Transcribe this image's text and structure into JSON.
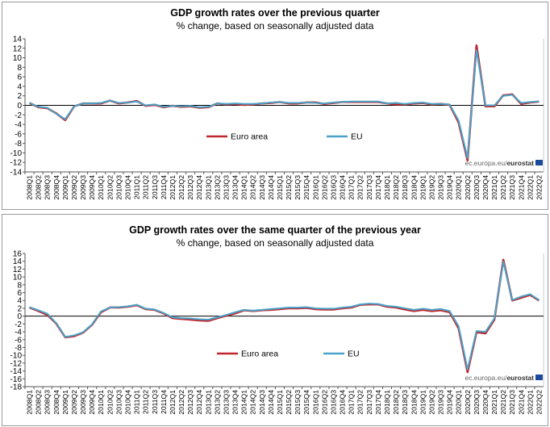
{
  "colors": {
    "euro_area": "#c0262d",
    "eu": "#4aa3c8",
    "zero_line": "#000000",
    "axis": "#555555",
    "eurostat_badge": "#1b4a9c"
  },
  "legend": {
    "euro_area": "Euro area",
    "eu": "EU"
  },
  "source": {
    "prefix": "ec.europa.eu/",
    "brand": "eurostat"
  },
  "chart_data": [
    {
      "type": "line",
      "title": "GDP growth rates over the previous quarter",
      "subtitle": "% change, based on seasonally adjusted data",
      "xlabel": "",
      "ylabel": "",
      "ylim": [
        -14,
        14
      ],
      "yticks": [
        14,
        12,
        10,
        8,
        6,
        4,
        2,
        0,
        -2,
        -4,
        -6,
        -8,
        -10,
        -12,
        -14
      ],
      "categories": [
        "2008Q1",
        "2008Q2",
        "2008Q3",
        "2008Q4",
        "2009Q1",
        "2009Q2",
        "2009Q3",
        "2009Q4",
        "2010Q1",
        "2010Q2",
        "2010Q3",
        "2010Q4",
        "2011Q1",
        "2011Q2",
        "2011Q3",
        "2011Q4",
        "2012Q1",
        "2012Q2",
        "2012Q3",
        "2012Q4",
        "2013Q1",
        "2013Q2",
        "2013Q3",
        "2013Q4",
        "2014Q1",
        "2014Q2",
        "2014Q3",
        "2014Q4",
        "2015Q1",
        "2015Q2",
        "2015Q3",
        "2015Q4",
        "2016Q1",
        "2016Q2",
        "2016Q3",
        "2016Q4",
        "2017Q1",
        "2017Q2",
        "2017Q3",
        "2017Q4",
        "2018Q1",
        "2018Q2",
        "2018Q3",
        "2018Q4",
        "2019Q1",
        "2019Q2",
        "2019Q3",
        "2019Q4",
        "2020Q1",
        "2020Q2",
        "2020Q3",
        "2020Q4",
        "2021Q1",
        "2021Q2",
        "2021Q3",
        "2021Q4",
        "2022Q1",
        "2022Q2"
      ],
      "series": [
        {
          "name": "Euro area",
          "color": "#c0262d",
          "values": [
            0.5,
            -0.4,
            -0.6,
            -1.7,
            -3.1,
            -0.2,
            0.4,
            0.4,
            0.4,
            1.0,
            0.4,
            0.6,
            0.9,
            -0.1,
            0.1,
            -0.4,
            -0.1,
            -0.3,
            -0.2,
            -0.5,
            -0.4,
            0.4,
            0.2,
            0.3,
            0.1,
            0.2,
            0.4,
            0.5,
            0.7,
            0.4,
            0.4,
            0.6,
            0.6,
            0.3,
            0.5,
            0.7,
            0.7,
            0.7,
            0.7,
            0.7,
            0.4,
            0.2,
            0.2,
            0.4,
            0.5,
            0.2,
            0.3,
            0.1,
            -3.6,
            -11.6,
            12.6,
            -0.2,
            -0.2,
            2.1,
            2.3,
            0.3,
            0.6,
            0.8
          ]
        },
        {
          "name": "EU",
          "color": "#4aa3c8",
          "values": [
            0.5,
            -0.3,
            -0.5,
            -1.8,
            -2.9,
            -0.2,
            0.4,
            0.4,
            0.5,
            1.0,
            0.5,
            0.6,
            0.8,
            0.0,
            0.2,
            -0.3,
            -0.1,
            -0.2,
            -0.1,
            -0.4,
            -0.3,
            0.4,
            0.3,
            0.4,
            0.3,
            0.3,
            0.4,
            0.6,
            0.7,
            0.5,
            0.5,
            0.6,
            0.5,
            0.4,
            0.6,
            0.7,
            0.8,
            0.8,
            0.8,
            0.8,
            0.4,
            0.5,
            0.3,
            0.5,
            0.6,
            0.3,
            0.3,
            0.2,
            -3.2,
            -11.1,
            11.6,
            0.0,
            0.0,
            2.0,
            2.2,
            0.5,
            0.7,
            0.8
          ]
        }
      ]
    },
    {
      "type": "line",
      "title": "GDP growth rates over the same quarter of the previous year",
      "subtitle": "% change, based on seasonally adjusted data",
      "xlabel": "",
      "ylabel": "",
      "ylim": [
        -18,
        16
      ],
      "yticks": [
        16,
        14,
        12,
        10,
        8,
        6,
        4,
        2,
        0,
        -2,
        -4,
        -6,
        -8,
        -10,
        -12,
        -14,
        -16,
        -18
      ],
      "categories": [
        "2008Q1",
        "2008Q2",
        "2008Q3",
        "2008Q4",
        "2009Q1",
        "2009Q2",
        "2009Q3",
        "2009Q4",
        "2010Q1",
        "2010Q2",
        "2010Q3",
        "2010Q4",
        "2011Q1",
        "2011Q2",
        "2011Q3",
        "2011Q4",
        "2012Q1",
        "2012Q2",
        "2012Q3",
        "2012Q4",
        "2013Q1",
        "2013Q2",
        "2013Q3",
        "2013Q4",
        "2014Q1",
        "2014Q2",
        "2014Q3",
        "2014Q4",
        "2015Q1",
        "2015Q2",
        "2015Q3",
        "2015Q4",
        "2016Q1",
        "2016Q2",
        "2016Q3",
        "2016Q4",
        "2017Q1",
        "2017Q2",
        "2017Q3",
        "2017Q4",
        "2018Q1",
        "2018Q2",
        "2018Q3",
        "2018Q4",
        "2019Q1",
        "2019Q2",
        "2019Q3",
        "2019Q4",
        "2020Q1",
        "2020Q2",
        "2020Q3",
        "2020Q4",
        "2021Q1",
        "2021Q2",
        "2021Q3",
        "2021Q4",
        "2022Q1",
        "2022Q2"
      ],
      "series": [
        {
          "name": "Euro area",
          "color": "#c0262d",
          "values": [
            2.2,
            1.3,
            0.3,
            -1.9,
            -5.4,
            -5.1,
            -4.2,
            -2.2,
            1.0,
            2.2,
            2.2,
            2.4,
            2.8,
            1.8,
            1.6,
            0.7,
            -0.5,
            -0.7,
            -0.9,
            -1.1,
            -1.2,
            -0.5,
            0.1,
            0.7,
            1.5,
            1.3,
            1.5,
            1.6,
            1.8,
            2.0,
            2.0,
            2.1,
            1.8,
            1.7,
            1.7,
            2.0,
            2.2,
            2.9,
            3.0,
            3.0,
            2.4,
            2.2,
            1.7,
            1.3,
            1.6,
            1.3,
            1.5,
            1.0,
            -3.1,
            -14.3,
            -4.1,
            -4.4,
            -0.9,
            14.4,
            4.0,
            4.7,
            5.4,
            4.0
          ]
        },
        {
          "name": "EU",
          "color": "#4aa3c8",
          "values": [
            2.3,
            1.5,
            0.6,
            -1.8,
            -5.3,
            -4.9,
            -4.1,
            -2.1,
            1.2,
            2.2,
            2.3,
            2.5,
            2.9,
            1.9,
            1.7,
            0.8,
            -0.3,
            -0.5,
            -0.6,
            -0.8,
            -0.9,
            -0.3,
            0.3,
            1.0,
            1.6,
            1.4,
            1.6,
            1.8,
            2.0,
            2.2,
            2.2,
            2.3,
            2.0,
            1.9,
            1.9,
            2.2,
            2.4,
            3.0,
            3.2,
            3.1,
            2.6,
            2.4,
            2.0,
            1.6,
            1.9,
            1.6,
            1.8,
            1.3,
            -2.6,
            -13.6,
            -3.8,
            -4.0,
            -0.6,
            13.9,
            4.1,
            5.0,
            5.6,
            4.1
          ]
        }
      ]
    }
  ]
}
